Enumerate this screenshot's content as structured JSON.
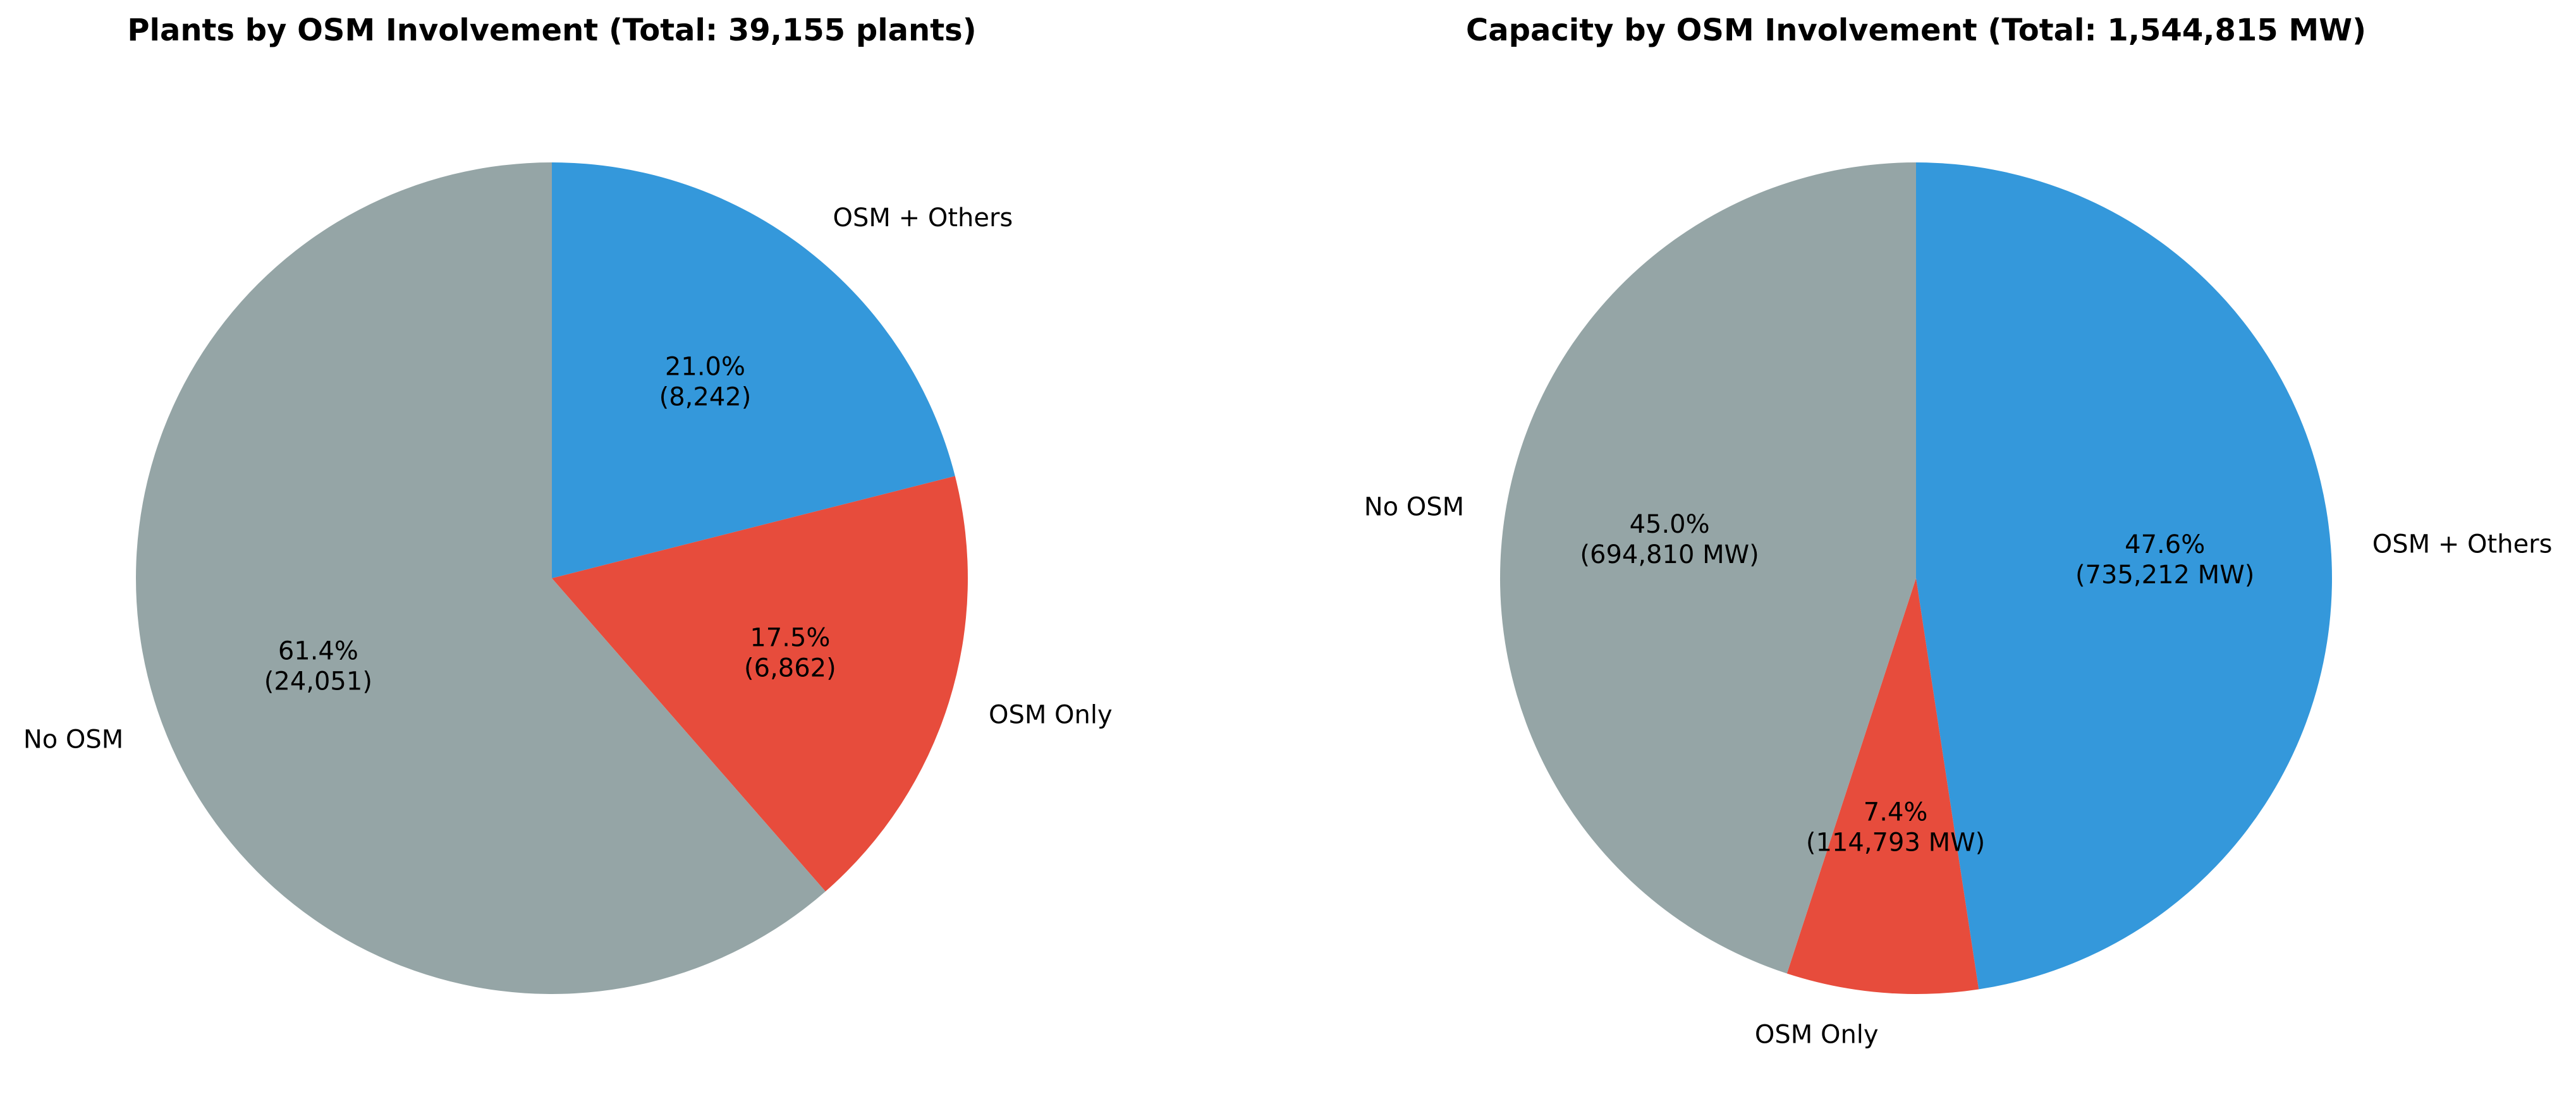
{
  "chart_data": [
    {
      "type": "pie",
      "title": "Plants by OSM Involvement (Total: 39,155 plants)",
      "start_angle_deg": 90,
      "direction": "clockwise",
      "slices": [
        {
          "label": "OSM + Others",
          "value": 8242,
          "percent": 21.0,
          "pct_text": "21.0%",
          "value_text": "(8,242)",
          "color": "#3498db"
        },
        {
          "label": "OSM Only",
          "value": 6862,
          "percent": 17.5,
          "pct_text": "17.5%",
          "value_text": "(6,862)",
          "color": "#e74c3c"
        },
        {
          "label": "No OSM",
          "value": 24051,
          "percent": 61.4,
          "pct_text": "61.4%",
          "value_text": "(24,051)",
          "color": "#95a5a6"
        }
      ]
    },
    {
      "type": "pie",
      "title": "Capacity by OSM Involvement (Total: 1,544,815 MW)",
      "start_angle_deg": 90,
      "direction": "clockwise",
      "slices": [
        {
          "label": "OSM + Others",
          "value": 735212,
          "percent": 47.6,
          "pct_text": "47.6%",
          "value_text": "(735,212 MW)",
          "color": "#3498db"
        },
        {
          "label": "OSM Only",
          "value": 114793,
          "percent": 7.4,
          "pct_text": "7.4%",
          "value_text": "(114,793 MW)",
          "color": "#e74c3c"
        },
        {
          "label": "No OSM",
          "value": 694810,
          "percent": 45.0,
          "pct_text": "45.0%",
          "value_text": "(694,810 MW)",
          "color": "#95a5a6"
        }
      ]
    }
  ]
}
